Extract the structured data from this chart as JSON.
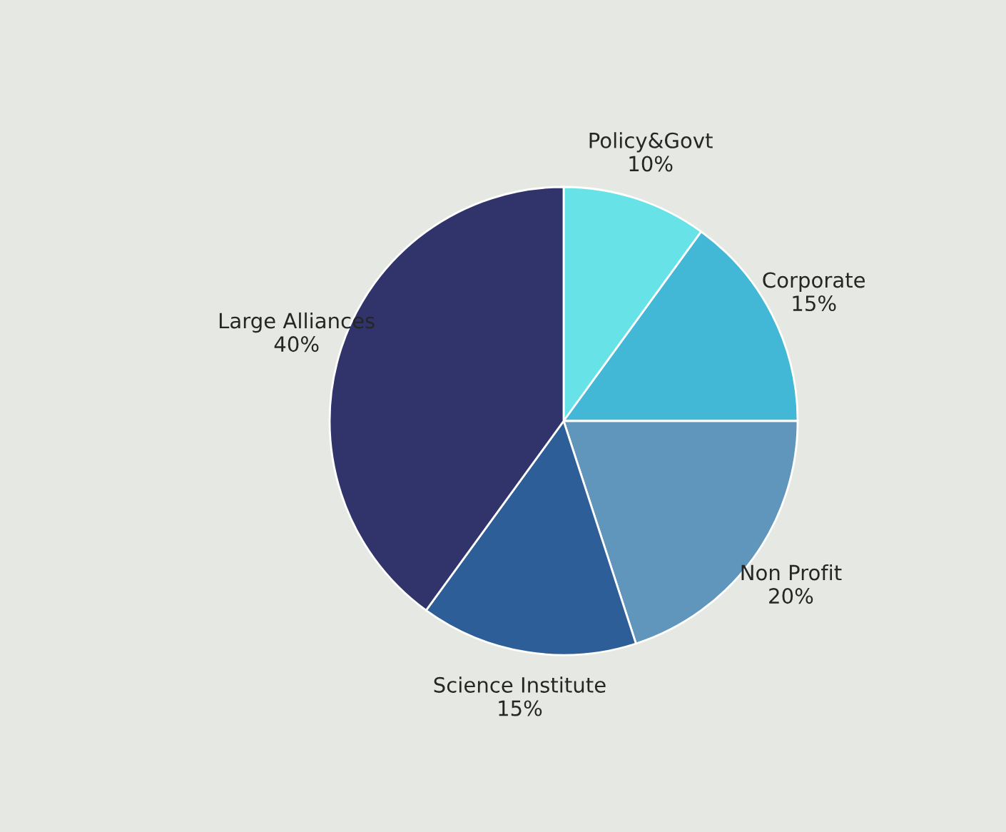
{
  "chart_data": {
    "type": "pie",
    "categories": [
      "Policy&Govt",
      "Corporate",
      "Non Profit",
      "Science Institute",
      "Large Alliances"
    ],
    "values": [
      10,
      15,
      20,
      15,
      40
    ],
    "value_labels": [
      "10%",
      "15%",
      "20%",
      "15%",
      "40%"
    ],
    "colors": [
      "#67e3e8",
      "#42b7d6",
      "#6096bb",
      "#2e5e98",
      "#31346b"
    ],
    "legend": false
  }
}
